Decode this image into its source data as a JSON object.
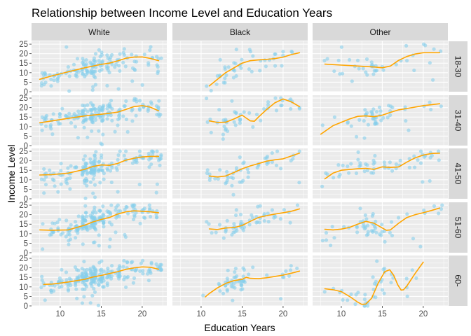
{
  "chart_data": {
    "type": "scatter",
    "title": "Relationship between Income Level and Education Years",
    "xlabel": "Education Years",
    "ylabel": "Income Level",
    "xlim": [
      6.5,
      23
    ],
    "ylim": [
      0,
      26.5
    ],
    "x_ticks": [
      10,
      15,
      20
    ],
    "y_ticks": [
      0,
      5,
      10,
      15,
      20,
      25
    ],
    "facet_columns": [
      "White",
      "Black",
      "Other"
    ],
    "facet_rows": [
      "18-30",
      "31-40",
      "41-50",
      "51-60",
      "60-"
    ],
    "point_color": "#87ceeb",
    "smooth_color": "#ffa500",
    "panel_background": "#ebebeb",
    "strip_background": "#d9d9d9",
    "panels": [
      {
        "row": "18-30",
        "col": "White",
        "x_range": [
          7.5,
          22.5
        ],
        "y_range": [
          0,
          25
        ],
        "n_points": 150,
        "smooth": [
          [
            7.5,
            6.5
          ],
          [
            9,
            8.3
          ],
          [
            11,
            10.5
          ],
          [
            13,
            12.6
          ],
          [
            15,
            14.4
          ],
          [
            16,
            15
          ],
          [
            17,
            16.2
          ],
          [
            18,
            17.6
          ],
          [
            19,
            18.2
          ],
          [
            20,
            18.3
          ],
          [
            21,
            17.5
          ],
          [
            22,
            16.3
          ]
        ]
      },
      {
        "row": "18-30",
        "col": "Black",
        "x_range": [
          10.5,
          22
        ],
        "y_range": [
          0,
          24
        ],
        "n_points": 45,
        "smooth": [
          [
            11,
            3
          ],
          [
            12,
            6.5
          ],
          [
            13,
            10
          ],
          [
            14,
            12.5
          ],
          [
            15,
            15
          ],
          [
            16,
            16.3
          ],
          [
            17,
            16.7
          ],
          [
            18,
            17
          ],
          [
            19,
            17.4
          ],
          [
            20,
            18.2
          ],
          [
            21,
            19.5
          ],
          [
            22,
            20.5
          ]
        ]
      },
      {
        "row": "18-30",
        "col": "Other",
        "x_range": [
          7.5,
          22.5
        ],
        "y_range": [
          2,
          25
        ],
        "n_points": 40,
        "smooth": [
          [
            8,
            14.5
          ],
          [
            10,
            14
          ],
          [
            12,
            13.5
          ],
          [
            14,
            13
          ],
          [
            15,
            12.6
          ],
          [
            16,
            13.5
          ],
          [
            17,
            16.5
          ],
          [
            18,
            18.5
          ],
          [
            19,
            19.8
          ],
          [
            20,
            20.5
          ],
          [
            22,
            20.5
          ]
        ]
      },
      {
        "row": "31-40",
        "col": "White",
        "x_range": [
          7.5,
          22.5
        ],
        "y_range": [
          0,
          25
        ],
        "n_points": 180,
        "smooth": [
          [
            7.5,
            12
          ],
          [
            9,
            13
          ],
          [
            11,
            14.3
          ],
          [
            13,
            15.6
          ],
          [
            15,
            16.5
          ],
          [
            16,
            17
          ],
          [
            17,
            17.6
          ],
          [
            18,
            19
          ],
          [
            19,
            20.5
          ],
          [
            20,
            21
          ],
          [
            21,
            20.2
          ],
          [
            22,
            18.3
          ]
        ]
      },
      {
        "row": "31-40",
        "col": "Black",
        "x_range": [
          10.5,
          22
        ],
        "y_range": [
          2,
          25
        ],
        "n_points": 50,
        "smooth": [
          [
            11,
            13
          ],
          [
            12,
            12.2
          ],
          [
            13,
            12.3
          ],
          [
            14,
            14
          ],
          [
            15,
            16
          ],
          [
            15.5,
            14.5
          ],
          [
            16,
            13
          ],
          [
            16.5,
            12.8
          ],
          [
            17,
            15
          ],
          [
            18,
            19
          ],
          [
            19,
            22.5
          ],
          [
            20,
            24.5
          ],
          [
            21,
            23
          ],
          [
            22,
            20.5
          ]
        ]
      },
      {
        "row": "31-40",
        "col": "Other",
        "x_range": [
          7.5,
          22.5
        ],
        "y_range": [
          3,
          25
        ],
        "n_points": 50,
        "smooth": [
          [
            7.5,
            6
          ],
          [
            9,
            10.5
          ],
          [
            11,
            14
          ],
          [
            12,
            15.4
          ],
          [
            13,
            15.6
          ],
          [
            14,
            15.2
          ],
          [
            15,
            16
          ],
          [
            16,
            17.5
          ],
          [
            17,
            18.8
          ],
          [
            18,
            19.5
          ],
          [
            20,
            21
          ],
          [
            22,
            22
          ]
        ]
      },
      {
        "row": "41-50",
        "col": "White",
        "x_range": [
          7.5,
          22.5
        ],
        "y_range": [
          0,
          25
        ],
        "n_points": 180,
        "smooth": [
          [
            7.5,
            12.5
          ],
          [
            9,
            12.7
          ],
          [
            11,
            13.5
          ],
          [
            13,
            15.5
          ],
          [
            14,
            17
          ],
          [
            15,
            17.8
          ],
          [
            16,
            17.6
          ],
          [
            17,
            18.6
          ],
          [
            18,
            20.3
          ],
          [
            19,
            21.3
          ],
          [
            20,
            22
          ],
          [
            21,
            22.3
          ],
          [
            22,
            22.3
          ]
        ]
      },
      {
        "row": "41-50",
        "col": "Black",
        "x_range": [
          10.5,
          22
        ],
        "y_range": [
          2,
          25
        ],
        "n_points": 50,
        "smooth": [
          [
            11,
            12
          ],
          [
            12,
            11.5
          ],
          [
            13,
            12
          ],
          [
            14,
            13.8
          ],
          [
            15,
            15.8
          ],
          [
            16,
            17.3
          ],
          [
            17,
            18.5
          ],
          [
            18,
            19.8
          ],
          [
            19,
            20.5
          ],
          [
            20,
            21
          ],
          [
            21,
            22.5
          ],
          [
            22,
            24
          ]
        ]
      },
      {
        "row": "41-50",
        "col": "Other",
        "x_range": [
          7.5,
          22.5
        ],
        "y_range": [
          4,
          25
        ],
        "n_points": 55,
        "smooth": [
          [
            8,
            10.5
          ],
          [
            9,
            13.5
          ],
          [
            10,
            15
          ],
          [
            12,
            15.8
          ],
          [
            13,
            16
          ],
          [
            14,
            15.5
          ],
          [
            15,
            16.8
          ],
          [
            16,
            16.5
          ],
          [
            17,
            16.8
          ],
          [
            18,
            19.3
          ],
          [
            19,
            21.5
          ],
          [
            20,
            23
          ],
          [
            21,
            23.8
          ],
          [
            22,
            24
          ]
        ]
      },
      {
        "row": "51-60",
        "col": "White",
        "x_range": [
          7.5,
          22.5
        ],
        "y_range": [
          0,
          25
        ],
        "n_points": 190,
        "smooth": [
          [
            7.5,
            12
          ],
          [
            9,
            11.8
          ],
          [
            11,
            12
          ],
          [
            13,
            14.5
          ],
          [
            14,
            16.2
          ],
          [
            15,
            17.5
          ],
          [
            16,
            18.5
          ],
          [
            17,
            20.3
          ],
          [
            18,
            21.5
          ],
          [
            19,
            22
          ],
          [
            20,
            21.8
          ],
          [
            21,
            21.5
          ],
          [
            22,
            21
          ]
        ]
      },
      {
        "row": "51-60",
        "col": "Black",
        "x_range": [
          10.5,
          22
        ],
        "y_range": [
          0,
          25
        ],
        "n_points": 55,
        "smooth": [
          [
            11,
            12.5
          ],
          [
            12,
            12.2
          ],
          [
            13,
            13
          ],
          [
            14,
            13.2
          ],
          [
            15,
            14.3
          ],
          [
            16,
            16.5
          ],
          [
            17,
            18.5
          ],
          [
            18,
            19.5
          ],
          [
            19,
            20.3
          ],
          [
            20,
            21
          ],
          [
            21,
            21.8
          ],
          [
            22,
            23
          ]
        ]
      },
      {
        "row": "51-60",
        "col": "Other",
        "x_range": [
          7.5,
          22.5
        ],
        "y_range": [
          3,
          25
        ],
        "n_points": 55,
        "smooth": [
          [
            8,
            12.3
          ],
          [
            9,
            12
          ],
          [
            10,
            12.4
          ],
          [
            11,
            13.3
          ],
          [
            12,
            15
          ],
          [
            13,
            16.5
          ],
          [
            14,
            15.5
          ],
          [
            15,
            13
          ],
          [
            15.5,
            11.8
          ],
          [
            16,
            12
          ],
          [
            17,
            15.5
          ],
          [
            18,
            18.5
          ],
          [
            19,
            20
          ],
          [
            20,
            21
          ],
          [
            21,
            22.2
          ],
          [
            22,
            23.5
          ]
        ]
      },
      {
        "row": "60-",
        "col": "White",
        "x_range": [
          7.5,
          22.5
        ],
        "y_range": [
          0,
          25
        ],
        "n_points": 230,
        "smooth": [
          [
            8,
            11.3
          ],
          [
            9,
            11.5
          ],
          [
            10,
            12
          ],
          [
            11,
            12.6
          ],
          [
            12,
            13.3
          ],
          [
            13,
            14
          ],
          [
            14,
            15.2
          ],
          [
            15,
            16
          ],
          [
            16,
            17
          ],
          [
            17,
            18
          ],
          [
            18,
            19.2
          ],
          [
            19,
            20
          ],
          [
            20,
            20.5
          ],
          [
            21,
            20.3
          ],
          [
            22,
            19.3
          ]
        ]
      },
      {
        "row": "60-",
        "col": "Black",
        "x_range": [
          10,
          22
        ],
        "y_range": [
          1,
          25
        ],
        "n_points": 55,
        "smooth": [
          [
            10.5,
            4.7
          ],
          [
            11,
            6.5
          ],
          [
            12,
            9.5
          ],
          [
            13,
            11.8
          ],
          [
            14,
            13.3
          ],
          [
            15,
            14
          ],
          [
            15.5,
            15
          ],
          [
            16,
            14.5
          ],
          [
            17,
            14.3
          ],
          [
            18,
            14.8
          ],
          [
            19,
            15.5
          ],
          [
            20,
            16.2
          ],
          [
            21,
            17.2
          ],
          [
            22,
            18.3
          ]
        ]
      },
      {
        "row": "60-",
        "col": "Other",
        "x_range": [
          7.5,
          20.5
        ],
        "y_range": [
          0,
          24
        ],
        "n_points": 40,
        "smooth": [
          [
            8,
            9
          ],
          [
            9,
            8.5
          ],
          [
            10,
            7.5
          ],
          [
            11,
            5
          ],
          [
            12,
            2
          ],
          [
            12.5,
            0.8
          ],
          [
            13,
            1
          ],
          [
            13.7,
            4
          ],
          [
            14.5,
            12
          ],
          [
            15.3,
            18
          ],
          [
            15.9,
            19
          ],
          [
            16.4,
            16
          ],
          [
            16.9,
            11
          ],
          [
            17.3,
            8.3
          ],
          [
            17.6,
            8.5
          ],
          [
            18,
            10.5
          ],
          [
            19,
            17
          ],
          [
            20,
            23
          ]
        ]
      }
    ]
  }
}
